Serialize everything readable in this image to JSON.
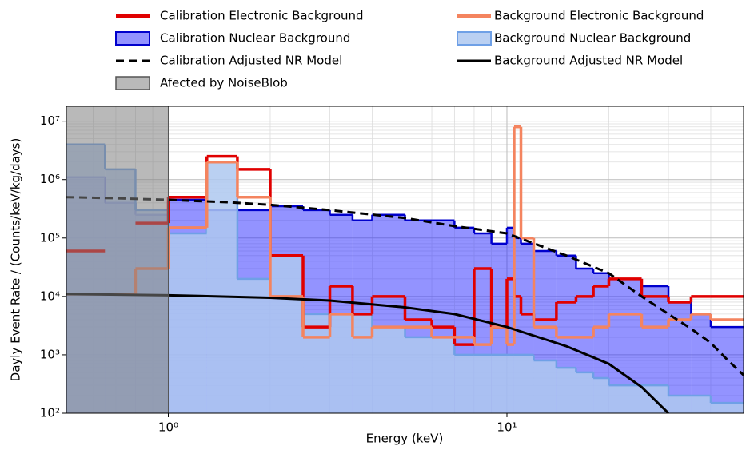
{
  "chart_data": {
    "type": "histogram",
    "xlabel": "Energy (keV)",
    "ylabel": "Dayly Event Rate / (Counts/keV/kg/days)",
    "xscale": "log",
    "yscale": "log",
    "grid": true,
    "xlim": [
      0.5,
      50
    ],
    "ylim": [
      100,
      18000000
    ],
    "xticks": [
      {
        "value": 1,
        "label": "10⁰"
      },
      {
        "value": 10,
        "label": "10¹"
      }
    ],
    "yticks": [
      {
        "value": 100,
        "label": "10²"
      },
      {
        "value": 1000,
        "label": "10³"
      },
      {
        "value": 10000,
        "label": "10⁴"
      },
      {
        "value": 100000,
        "label": "10⁵"
      },
      {
        "value": 1000000,
        "label": "10⁶"
      },
      {
        "value": 10000000,
        "label": "10⁷"
      }
    ],
    "bins": [
      0.5,
      0.65,
      0.8,
      1.0,
      1.3,
      1.6,
      2.0,
      2.5,
      3.0,
      3.5,
      4.0,
      5.0,
      6.0,
      7.0,
      8.0,
      9.0,
      10.0,
      10.5,
      11,
      12,
      14,
      16,
      18,
      20,
      25,
      30,
      35,
      40,
      50
    ],
    "series": [
      {
        "name": "Calibration Electronic Background",
        "style": "step-line",
        "color": "#e00000",
        "values": [
          60000,
          null,
          180000,
          500000,
          2500000,
          1500000,
          50000,
          3000,
          15000,
          5000,
          10000,
          4000,
          3000,
          1500,
          30000,
          3000,
          20000,
          10000,
          5000,
          4000,
          8000,
          10000,
          15000,
          20000,
          10000,
          8000,
          10000,
          10000
        ]
      },
      {
        "name": "Background Electronic Background",
        "style": "step-line",
        "color": "#f4845f",
        "values": [
          11000,
          11000,
          30000,
          150000,
          2000000,
          500000,
          10000,
          2000,
          5000,
          2000,
          3000,
          3000,
          2000,
          2000,
          1500,
          3000,
          1500,
          8000000,
          100000,
          3000,
          2000,
          2000,
          3000,
          5000,
          3000,
          4000,
          5000,
          4000
        ]
      },
      {
        "name": "Calibration Nuclear Background",
        "style": "step-fill",
        "color": "#0000cc",
        "fill": "rgba(40,40,255,0.5)",
        "values": [
          1100000,
          400000,
          250000,
          450000,
          300000,
          300000,
          350000,
          300000,
          250000,
          200000,
          250000,
          200000,
          200000,
          150000,
          120000,
          80000,
          150000,
          100000,
          80000,
          60000,
          50000,
          30000,
          25000,
          20000,
          15000,
          8000,
          5000,
          3000
        ]
      },
      {
        "name": "Background Nuclear Background",
        "style": "step-fill",
        "color": "#6fa0e6",
        "fill": "rgba(174,200,240,0.85)",
        "values": [
          4000000,
          1500000,
          300000,
          120000,
          2000000,
          20000,
          50000,
          5000,
          5000,
          5000,
          3000,
          2000,
          2000,
          1000,
          1000,
          1000,
          1000,
          1000,
          1000,
          800,
          600,
          500,
          400,
          300,
          300,
          200,
          200,
          150
        ]
      },
      {
        "name": "Calibration Adjusted NR Model",
        "style": "line-dashed",
        "color": "#000000",
        "x": [
          0.5,
          0.7,
          1,
          1.5,
          2,
          3,
          5,
          7,
          10,
          15,
          20,
          25,
          30,
          35,
          40,
          45,
          50
        ],
        "values": [
          500000,
          480000,
          450000,
          410000,
          370000,
          300000,
          220000,
          160000,
          120000,
          50000,
          25000,
          10000,
          5000,
          2800,
          1600,
          800,
          450
        ]
      },
      {
        "name": "Background Adjusted NR Model",
        "style": "line",
        "color": "#000000",
        "x": [
          0.5,
          1,
          2,
          3,
          5,
          7,
          10,
          15,
          20,
          25,
          30
        ],
        "values": [
          11000,
          10500,
          9500,
          8500,
          6500,
          5000,
          3000,
          1400,
          700,
          280,
          100
        ]
      }
    ],
    "shaded_region": {
      "name": "Afected by NoiseBlob",
      "color": "rgba(128,128,128,0.55)",
      "range": [
        0.5,
        1
      ]
    }
  }
}
